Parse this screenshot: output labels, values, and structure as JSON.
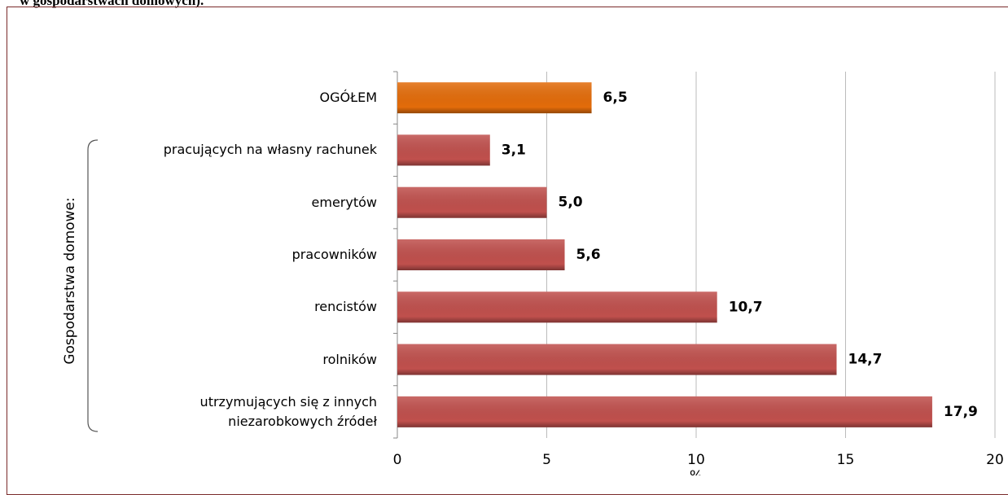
{
  "chart_data": {
    "type": "barh",
    "header": "w gospodarstwach domowych).",
    "group_label": "Gospodarstwa domowe:",
    "categories": [
      "OGÓŁEM",
      "pracujących na własny rachunek",
      "emerytów",
      "pracowników",
      "rencistów",
      "rolników",
      "utrzymujących się z innych\nniezarobkowych źródeł"
    ],
    "values": [
      6.5,
      3.1,
      5.0,
      5.6,
      10.7,
      14.7,
      17.9
    ],
    "value_labels": [
      "6,5",
      "3,1",
      "5,0",
      "5,6",
      "10,7",
      "14,7",
      "17,9"
    ],
    "colors": [
      "#e36c0a",
      "#c0504d",
      "#c0504d",
      "#c0504d",
      "#c0504d",
      "#c0504d",
      "#c0504d"
    ],
    "xlabel": "%",
    "xlim": [
      0,
      20
    ],
    "xticks": [
      0,
      5,
      10,
      15,
      20
    ],
    "grid": true
  }
}
